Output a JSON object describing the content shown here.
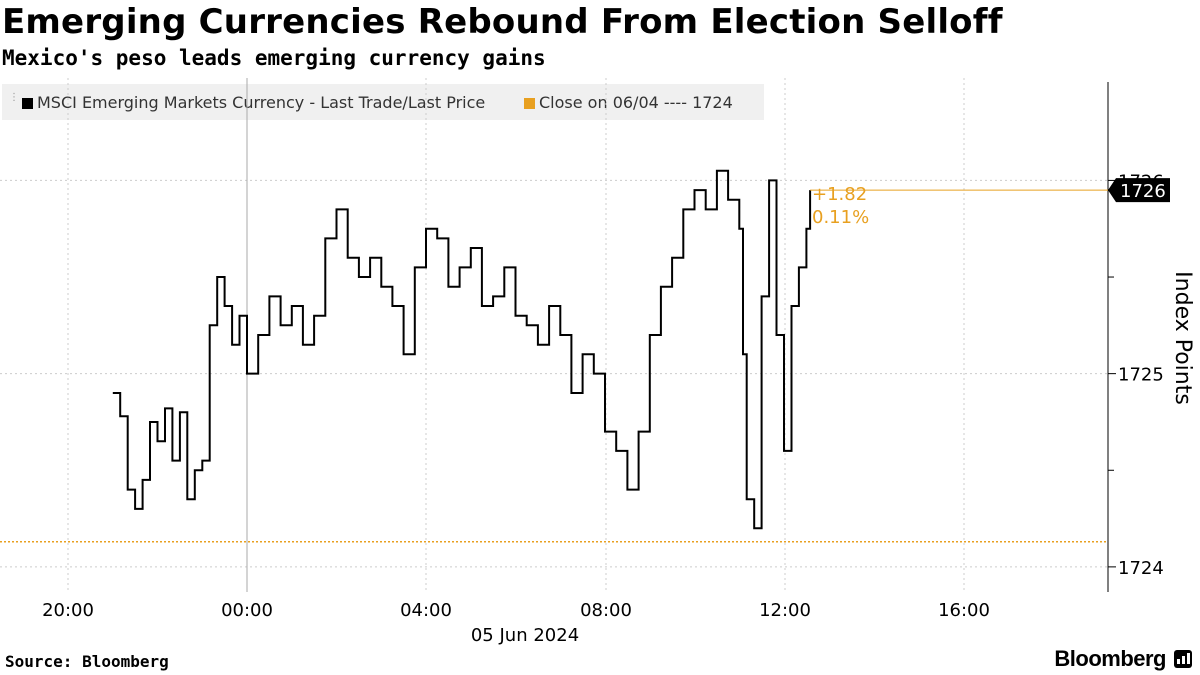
{
  "header": {
    "title": "Emerging Currencies Rebound From Election Selloff",
    "subtitle": "Mexico's peso leads emerging currency gains"
  },
  "footer": {
    "source": "Source: Bloomberg",
    "brand": "Bloomberg"
  },
  "chart_data": {
    "type": "line",
    "ylabel": "Index Points",
    "ylim": [
      1723.87,
      1726.53
    ],
    "yticks": [
      "1724",
      "1725",
      "1726"
    ],
    "x_tick_labels": [
      "20:00",
      "00:00",
      "04:00",
      "08:00",
      "12:00",
      "16:00"
    ],
    "x_date_label": "05 Jun 2024",
    "grid": true,
    "legend_position": "top-left",
    "colors": {
      "series": "#000000",
      "close": "#e8a020",
      "annotation": "#e8a020",
      "grid": "#cccccc"
    },
    "series": [
      {
        "name": "MSCI Emerging Markets Currency - Last Trade/Last Price",
        "x": [
          "2024-06-04T21:00",
          "2024-06-04T21:10",
          "2024-06-04T21:20",
          "2024-06-04T21:30",
          "2024-06-04T21:40",
          "2024-06-04T21:50",
          "2024-06-04T22:00",
          "2024-06-04T22:10",
          "2024-06-04T22:20",
          "2024-06-04T22:30",
          "2024-06-04T22:40",
          "2024-06-04T22:50",
          "2024-06-04T23:00",
          "2024-06-04T23:10",
          "2024-06-04T23:20",
          "2024-06-04T23:30",
          "2024-06-04T23:40",
          "2024-06-04T23:50",
          "2024-06-05T00:00",
          "2024-06-05T00:15",
          "2024-06-05T00:30",
          "2024-06-05T00:45",
          "2024-06-05T01:00",
          "2024-06-05T01:15",
          "2024-06-05T01:30",
          "2024-06-05T01:45",
          "2024-06-05T02:00",
          "2024-06-05T02:15",
          "2024-06-05T02:30",
          "2024-06-05T02:45",
          "2024-06-05T03:00",
          "2024-06-05T03:15",
          "2024-06-05T03:30",
          "2024-06-05T03:45",
          "2024-06-05T04:00",
          "2024-06-05T04:15",
          "2024-06-05T04:30",
          "2024-06-05T04:45",
          "2024-06-05T05:00",
          "2024-06-05T05:15",
          "2024-06-05T05:30",
          "2024-06-05T05:45",
          "2024-06-05T06:00",
          "2024-06-05T06:15",
          "2024-06-05T06:30",
          "2024-06-05T06:45",
          "2024-06-05T07:00",
          "2024-06-05T07:15",
          "2024-06-05T07:30",
          "2024-06-05T07:45",
          "2024-06-05T08:00",
          "2024-06-05T08:15",
          "2024-06-05T08:30",
          "2024-06-05T08:45",
          "2024-06-05T09:00",
          "2024-06-05T09:15",
          "2024-06-05T09:30",
          "2024-06-05T09:45",
          "2024-06-05T10:00",
          "2024-06-05T10:15",
          "2024-06-05T10:30",
          "2024-06-05T10:45",
          "2024-06-05T11:00",
          "2024-06-05T11:05",
          "2024-06-05T11:10",
          "2024-06-05T11:20",
          "2024-06-05T11:30",
          "2024-06-05T11:40",
          "2024-06-05T11:50",
          "2024-06-05T12:00",
          "2024-06-05T12:10",
          "2024-06-05T12:20",
          "2024-06-05T12:30",
          "2024-06-05T12:35"
        ],
        "y": [
          1724.9,
          1724.78,
          1724.4,
          1724.3,
          1724.45,
          1724.75,
          1724.65,
          1724.82,
          1724.55,
          1724.8,
          1724.35,
          1724.5,
          1724.55,
          1725.25,
          1725.5,
          1725.35,
          1725.15,
          1725.3,
          1725.0,
          1725.2,
          1725.4,
          1725.25,
          1725.35,
          1725.15,
          1725.3,
          1725.7,
          1725.85,
          1725.6,
          1725.5,
          1725.6,
          1725.45,
          1725.35,
          1725.1,
          1725.55,
          1725.75,
          1725.7,
          1725.45,
          1725.55,
          1725.65,
          1725.35,
          1725.4,
          1725.55,
          1725.3,
          1725.25,
          1725.15,
          1725.35,
          1725.2,
          1724.9,
          1725.1,
          1725.0,
          1724.7,
          1724.6,
          1724.4,
          1724.7,
          1725.2,
          1725.45,
          1725.6,
          1725.85,
          1725.95,
          1725.85,
          1726.05,
          1725.9,
          1725.75,
          1725.1,
          1724.35,
          1724.2,
          1725.4,
          1726.0,
          1725.2,
          1724.6,
          1725.35,
          1725.55,
          1725.75,
          1725.95
        ]
      },
      {
        "name": "Close on 06/04 ---- 1724",
        "value": 1724.13
      }
    ],
    "last_value_label": "1726",
    "last_value": 1725.95,
    "annotation": {
      "change": "+1.82",
      "change_pct": "0.11%"
    }
  }
}
